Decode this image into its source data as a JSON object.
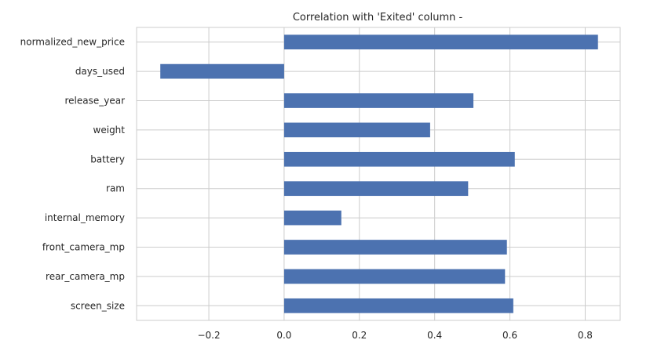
{
  "chart_data": {
    "type": "bar",
    "orientation": "horizontal",
    "title": "Correlation with 'Exited' column -",
    "xlabel": "",
    "ylabel": "",
    "categories": [
      "normalized_new_price",
      "days_used",
      "release_year",
      "weight",
      "battery",
      "ram",
      "internal_memory",
      "front_camera_mp",
      "rear_camera_mp",
      "screen_size"
    ],
    "values": [
      0.834,
      -0.329,
      0.503,
      0.388,
      0.613,
      0.489,
      0.152,
      0.592,
      0.587,
      0.609
    ],
    "xlim": [
      -0.392,
      0.893
    ],
    "xticks": [
      -0.2,
      0.0,
      0.2,
      0.4,
      0.6,
      0.8
    ],
    "xtick_labels": [
      "−0.2",
      "0.0",
      "0.2",
      "0.4",
      "0.6",
      "0.8"
    ],
    "grid": true,
    "legend": "none",
    "bar_color": "#4c72b0"
  }
}
